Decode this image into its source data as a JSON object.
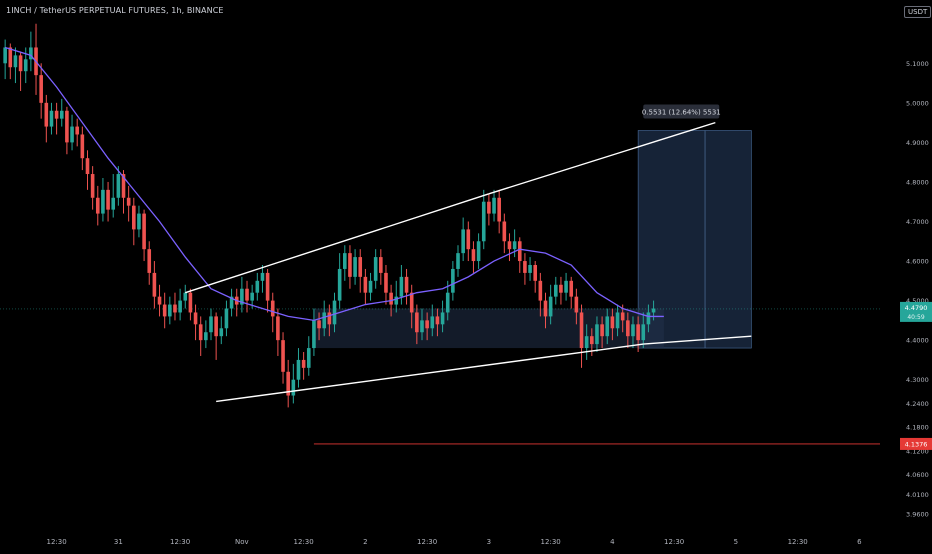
{
  "header": {
    "title": "1INCH / TetherUS PERPETUAL FUTURES, 1h, BINANCE",
    "currency": "USDT"
  },
  "colors": {
    "background": "#000000",
    "up_candle": "#26a69a",
    "down_candle": "#ef5350",
    "moving_average": "#7b61ff",
    "trendline": "#ffffff",
    "target_zone": "#1e2f4a",
    "stop_line": "#e53935",
    "axis_text": "#b2b5be"
  },
  "chart_data": {
    "type": "candlestick",
    "title": "1INCH / TetherUS PERPETUAL FUTURES, 1h, BINANCE",
    "y_axis": {
      "position": "right",
      "range": [
        3.92,
        5.26
      ],
      "ticks": [
        "5.1000",
        "5.0000",
        "4.9000",
        "4.8000",
        "4.7000",
        "4.6000",
        "4.5000",
        "4.4000",
        "4.3000",
        "4.2400",
        "4.1800",
        "4.1200",
        "4.0600",
        "4.0100",
        "3.9600"
      ],
      "tick_values": [
        5.1,
        5.0,
        4.9,
        4.8,
        4.7,
        4.6,
        4.5,
        4.4,
        4.3,
        4.24,
        4.18,
        4.12,
        4.06,
        4.01,
        3.96
      ]
    },
    "x_axis": {
      "unit": "hour_index",
      "range": [
        -1,
        170
      ],
      "tick_labels": [
        "12:30",
        "31",
        "12:30",
        "Nov",
        "12:30",
        "2",
        "12:30",
        "3",
        "12:30",
        "4",
        "12:30",
        "5",
        "12:30",
        "6"
      ],
      "tick_positions": [
        10,
        22,
        34,
        46,
        58,
        70,
        82,
        94,
        106,
        118,
        130,
        142,
        154,
        166
      ]
    },
    "current_price": {
      "value": 4.479,
      "label": "4.4790",
      "countdown": "40:59"
    },
    "stop_level": {
      "value": 4.1376,
      "label": "4.1376",
      "from_x": 60
    },
    "target_zone": {
      "x_from": 123,
      "x_to": 145,
      "top": 4.93,
      "bottom": 4.38
    },
    "range_box": {
      "x_from": 60,
      "x_to": 128,
      "top": 4.48,
      "bottom": 4.38
    },
    "measure_label": "0.5531 (12.64%) 5531",
    "trendlines": [
      {
        "name": "upper-channel",
        "start": [
          35,
          4.52
        ],
        "end": [
          94,
          4.77
        ]
      },
      {
        "name": "lower-channel",
        "start": [
          41,
          4.245
        ],
        "end": [
          124,
          4.39
        ]
      },
      {
        "name": "target-line",
        "start": [
          94,
          4.77
        ],
        "end": [
          138,
          4.95
        ]
      },
      {
        "name": "lower-extension",
        "start": [
          124,
          4.39
        ],
        "end": [
          145,
          4.41
        ]
      }
    ],
    "moving_average": [
      [
        0,
        5.14
      ],
      [
        5,
        5.12
      ],
      [
        10,
        5.04
      ],
      [
        15,
        4.95
      ],
      [
        20,
        4.86
      ],
      [
        25,
        4.78
      ],
      [
        30,
        4.7
      ],
      [
        35,
        4.61
      ],
      [
        40,
        4.53
      ],
      [
        45,
        4.5
      ],
      [
        50,
        4.48
      ],
      [
        55,
        4.46
      ],
      [
        60,
        4.45
      ],
      [
        65,
        4.47
      ],
      [
        70,
        4.49
      ],
      [
        75,
        4.5
      ],
      [
        80,
        4.52
      ],
      [
        85,
        4.53
      ],
      [
        90,
        4.56
      ],
      [
        95,
        4.6
      ],
      [
        100,
        4.63
      ],
      [
        105,
        4.62
      ],
      [
        110,
        4.59
      ],
      [
        115,
        4.52
      ],
      [
        120,
        4.48
      ],
      [
        125,
        4.46
      ],
      [
        128,
        4.46
      ]
    ],
    "candles": [
      [
        5.1,
        5.14,
        5.16,
        5.06
      ],
      [
        5.14,
        5.09,
        5.15,
        5.06
      ],
      [
        5.09,
        5.12,
        5.14,
        5.05
      ],
      [
        5.12,
        5.08,
        5.13,
        5.03
      ],
      [
        5.08,
        5.11,
        5.14,
        5.05
      ],
      [
        5.11,
        5.14,
        5.18,
        5.08
      ],
      [
        5.14,
        5.07,
        5.2,
        5.02
      ],
      [
        5.07,
        5.0,
        5.1,
        4.96
      ],
      [
        5.0,
        4.94,
        5.02,
        4.9
      ],
      [
        4.94,
        4.98,
        5.0,
        4.92
      ],
      [
        4.98,
        4.96,
        5.0,
        4.92
      ],
      [
        4.96,
        4.98,
        5.01,
        4.94
      ],
      [
        4.98,
        4.9,
        4.99,
        4.87
      ],
      [
        4.9,
        4.94,
        4.97,
        4.88
      ],
      [
        4.94,
        4.92,
        4.96,
        4.89
      ],
      [
        4.92,
        4.86,
        4.94,
        4.83
      ],
      [
        4.86,
        4.82,
        4.88,
        4.78
      ],
      [
        4.82,
        4.76,
        4.84,
        4.73
      ],
      [
        4.76,
        4.72,
        4.79,
        4.69
      ],
      [
        4.72,
        4.78,
        4.81,
        4.7
      ],
      [
        4.78,
        4.73,
        4.8,
        4.7
      ],
      [
        4.73,
        4.76,
        4.82,
        4.71
      ],
      [
        4.76,
        4.82,
        4.84,
        4.74
      ],
      [
        4.82,
        4.76,
        4.83,
        4.72
      ],
      [
        4.76,
        4.74,
        4.79,
        4.7
      ],
      [
        4.74,
        4.68,
        4.76,
        4.64
      ],
      [
        4.68,
        4.72,
        4.74,
        4.66
      ],
      [
        4.72,
        4.63,
        4.73,
        4.6
      ],
      [
        4.63,
        4.57,
        4.65,
        4.54
      ],
      [
        4.57,
        4.51,
        4.6,
        4.48
      ],
      [
        4.51,
        4.49,
        4.54,
        4.46
      ],
      [
        4.49,
        4.46,
        4.52,
        4.43
      ],
      [
        4.46,
        4.49,
        4.51,
        4.44
      ],
      [
        4.49,
        4.47,
        4.52,
        4.45
      ],
      [
        4.47,
        4.5,
        4.53,
        4.45
      ],
      [
        4.5,
        4.52,
        4.54,
        4.48
      ],
      [
        4.52,
        4.47,
        4.53,
        4.45
      ],
      [
        4.47,
        4.44,
        4.49,
        4.4
      ],
      [
        4.44,
        4.4,
        4.46,
        4.36
      ],
      [
        4.4,
        4.42,
        4.45,
        4.38
      ],
      [
        4.42,
        4.46,
        4.48,
        4.4
      ],
      [
        4.46,
        4.41,
        4.47,
        4.35
      ],
      [
        4.41,
        4.43,
        4.46,
        4.39
      ],
      [
        4.43,
        4.48,
        4.5,
        4.41
      ],
      [
        4.48,
        4.51,
        4.53,
        4.46
      ],
      [
        4.51,
        4.49,
        4.53,
        4.46
      ],
      [
        4.49,
        4.53,
        4.56,
        4.47
      ],
      [
        4.53,
        4.5,
        4.55,
        4.47
      ],
      [
        4.5,
        4.52,
        4.54,
        4.48
      ],
      [
        4.52,
        4.55,
        4.57,
        4.5
      ],
      [
        4.55,
        4.57,
        4.59,
        4.52
      ],
      [
        4.57,
        4.5,
        4.58,
        4.47
      ],
      [
        4.5,
        4.46,
        4.52,
        4.42
      ],
      [
        4.46,
        4.4,
        4.48,
        4.36
      ],
      [
        4.4,
        4.32,
        4.42,
        4.29
      ],
      [
        4.32,
        4.26,
        4.35,
        4.23
      ],
      [
        4.26,
        4.3,
        4.34,
        4.24
      ],
      [
        4.3,
        4.35,
        4.38,
        4.28
      ],
      [
        4.35,
        4.33,
        4.37,
        4.3
      ],
      [
        4.33,
        4.38,
        4.41,
        4.31
      ],
      [
        4.38,
        4.45,
        4.48,
        4.36
      ],
      [
        4.45,
        4.43,
        4.47,
        4.4
      ],
      [
        4.43,
        4.47,
        4.5,
        4.41
      ],
      [
        4.47,
        4.44,
        4.49,
        4.41
      ],
      [
        4.44,
        4.5,
        4.52,
        4.42
      ],
      [
        4.5,
        4.58,
        4.62,
        4.48
      ],
      [
        4.58,
        4.62,
        4.64,
        4.55
      ],
      [
        4.62,
        4.56,
        4.64,
        4.53
      ],
      [
        4.56,
        4.61,
        4.63,
        4.54
      ],
      [
        4.61,
        4.56,
        4.63,
        4.52
      ],
      [
        4.56,
        4.52,
        4.58,
        4.49
      ],
      [
        4.52,
        4.55,
        4.57,
        4.5
      ],
      [
        4.55,
        4.61,
        4.63,
        4.53
      ],
      [
        4.61,
        4.57,
        4.63,
        4.54
      ],
      [
        4.57,
        4.52,
        4.59,
        4.49
      ],
      [
        4.52,
        4.49,
        4.54,
        4.46
      ],
      [
        4.49,
        4.51,
        4.55,
        4.47
      ],
      [
        4.51,
        4.56,
        4.59,
        4.49
      ],
      [
        4.56,
        4.52,
        4.58,
        4.49
      ],
      [
        4.52,
        4.47,
        4.54,
        4.43
      ],
      [
        4.47,
        4.42,
        4.49,
        4.39
      ],
      [
        4.42,
        4.45,
        4.48,
        4.4
      ],
      [
        4.45,
        4.43,
        4.47,
        4.4
      ],
      [
        4.43,
        4.46,
        4.49,
        4.41
      ],
      [
        4.46,
        4.44,
        4.48,
        4.41
      ],
      [
        4.44,
        4.47,
        4.5,
        4.42
      ],
      [
        4.47,
        4.52,
        4.55,
        4.45
      ],
      [
        4.52,
        4.58,
        4.6,
        4.5
      ],
      [
        4.58,
        4.62,
        4.64,
        4.56
      ],
      [
        4.62,
        4.68,
        4.71,
        4.6
      ],
      [
        4.68,
        4.63,
        4.7,
        4.6
      ],
      [
        4.63,
        4.6,
        4.65,
        4.57
      ],
      [
        4.6,
        4.65,
        4.67,
        4.58
      ],
      [
        4.65,
        4.75,
        4.78,
        4.63
      ],
      [
        4.75,
        4.72,
        4.77,
        4.69
      ],
      [
        4.72,
        4.76,
        4.78,
        4.7
      ],
      [
        4.76,
        4.7,
        4.78,
        4.67
      ],
      [
        4.7,
        4.65,
        4.72,
        4.62
      ],
      [
        4.65,
        4.63,
        4.67,
        4.6
      ],
      [
        4.63,
        4.65,
        4.68,
        4.61
      ],
      [
        4.65,
        4.6,
        4.66,
        4.57
      ],
      [
        4.6,
        4.57,
        4.62,
        4.54
      ],
      [
        4.57,
        4.59,
        4.61,
        4.55
      ],
      [
        4.59,
        4.55,
        4.6,
        4.52
      ],
      [
        4.55,
        4.5,
        4.57,
        4.46
      ],
      [
        4.5,
        4.46,
        4.52,
        4.43
      ],
      [
        4.46,
        4.51,
        4.54,
        4.44
      ],
      [
        4.51,
        4.54,
        4.56,
        4.49
      ],
      [
        4.54,
        4.52,
        4.56,
        4.49
      ],
      [
        4.52,
        4.55,
        4.57,
        4.5
      ],
      [
        4.55,
        4.51,
        4.56,
        4.48
      ],
      [
        4.51,
        4.47,
        4.53,
        4.44
      ],
      [
        4.47,
        4.38,
        4.49,
        4.33
      ],
      [
        4.38,
        4.41,
        4.44,
        4.35
      ],
      [
        4.41,
        4.39,
        4.43,
        4.36
      ],
      [
        4.39,
        4.44,
        4.46,
        4.37
      ],
      [
        4.44,
        4.41,
        4.46,
        4.38
      ],
      [
        4.41,
        4.46,
        4.48,
        4.39
      ],
      [
        4.46,
        4.43,
        4.48,
        4.4
      ],
      [
        4.43,
        4.47,
        4.49,
        4.41
      ],
      [
        4.47,
        4.45,
        4.49,
        4.42
      ],
      [
        4.45,
        4.41,
        4.47,
        4.38
      ],
      [
        4.41,
        4.44,
        4.46,
        4.38
      ],
      [
        4.44,
        4.4,
        4.46,
        4.37
      ],
      [
        4.4,
        4.44,
        4.47,
        4.38
      ],
      [
        4.44,
        4.47,
        4.49,
        4.42
      ],
      [
        4.47,
        4.48,
        4.5,
        4.45
      ]
    ]
  }
}
